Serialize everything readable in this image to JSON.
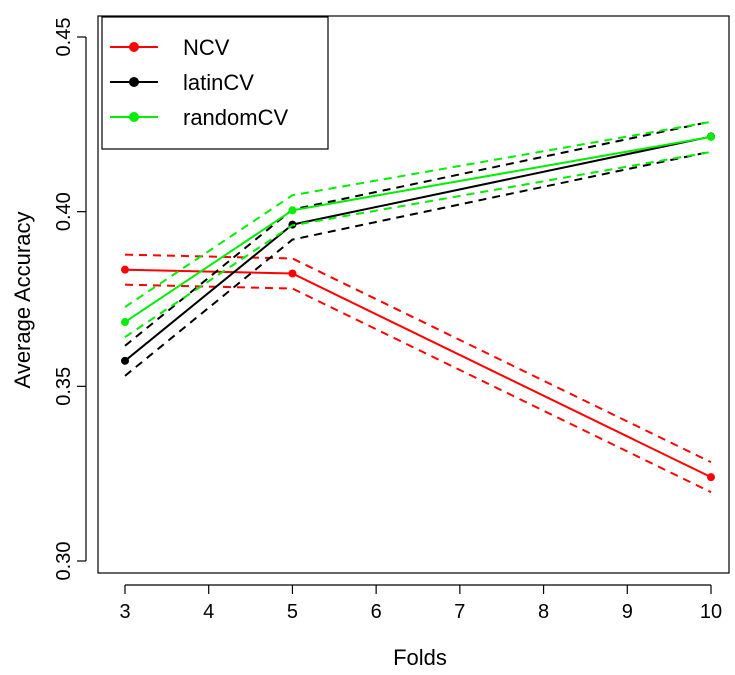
{
  "chart_data": {
    "type": "line",
    "xlabel": "Folds",
    "ylabel": "Average Accuracy",
    "xlim": [
      3,
      10
    ],
    "ylim": [
      0.3,
      0.45
    ],
    "xticks": [
      3,
      4,
      5,
      6,
      7,
      8,
      9,
      10
    ],
    "xtick_labels": [
      "3",
      "4",
      "5",
      "6",
      "7",
      "8",
      "9",
      "10"
    ],
    "yticks": [
      0.3,
      0.35,
      0.4,
      0.45
    ],
    "ytick_labels": [
      "0.30",
      "0.35",
      "0.40",
      "0.45"
    ],
    "grid": false,
    "legend_position": "top-left",
    "x": [
      3,
      5,
      10
    ],
    "series": [
      {
        "name": "NCV",
        "color": "#ff0000",
        "values": [
          0.3834,
          0.3823,
          0.324
        ],
        "upper": [
          0.3877,
          0.3866,
          0.3283
        ],
        "lower": [
          0.3791,
          0.378,
          0.3197
        ]
      },
      {
        "name": "latinCV",
        "color": "#000000",
        "values": [
          0.3573,
          0.3963,
          0.4215
        ],
        "upper": [
          0.3616,
          0.4006,
          0.4258
        ],
        "lower": [
          0.353,
          0.392,
          0.4172
        ]
      },
      {
        "name": "randomCV",
        "color": "#00ee00",
        "values": [
          0.3684,
          0.4004,
          0.4214
        ],
        "upper": [
          0.3727,
          0.4047,
          0.4257
        ],
        "lower": [
          0.3641,
          0.3961,
          0.4171
        ]
      }
    ]
  }
}
